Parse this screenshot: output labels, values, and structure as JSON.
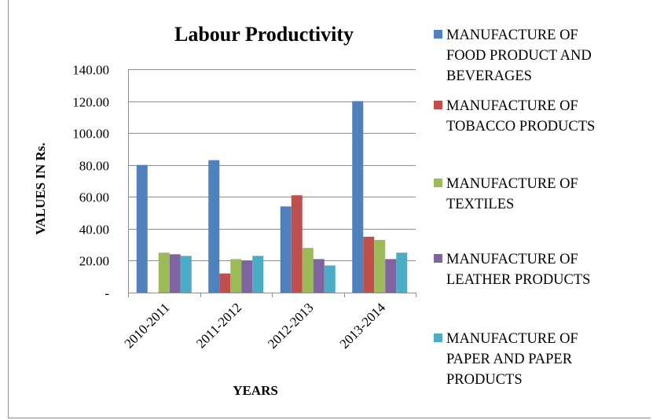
{
  "chart_data": {
    "type": "bar",
    "title": "Labour Productivity",
    "xlabel": "YEARS",
    "ylabel": "VALUES  IN Rs.",
    "categories": [
      "2010-2011",
      "2011-2012",
      "2012-2013",
      "2013-2014"
    ],
    "ylim": [
      0,
      140
    ],
    "yticks": [
      0,
      20,
      40,
      60,
      80,
      100,
      120,
      140
    ],
    "ytick_labels": [
      "-",
      "20.00",
      "40.00",
      "60.00",
      "80.00",
      "100.00",
      "120.00",
      "140.00"
    ],
    "grid": true,
    "legend_position": "right",
    "series": [
      {
        "name": "MANUFACTURE OF FOOD PRODUCT AND BEVERAGES",
        "legend_lines": [
          "MANUFACTURE OF",
          "FOOD PRODUCT AND",
          "BEVERAGES"
        ],
        "color": "#4f81bd",
        "values": [
          80,
          83,
          54,
          120
        ]
      },
      {
        "name": "MANUFACTURE OF TOBACCO PRODUCTS",
        "legend_lines": [
          "MANUFACTURE OF",
          "TOBACCO PRODUCTS"
        ],
        "color": "#c0504d",
        "values": [
          0,
          12,
          61,
          35
        ]
      },
      {
        "name": "MANUFACTURE OF TEXTILES",
        "legend_lines": [
          "MANUFACTURE OF",
          "TEXTILES"
        ],
        "color": "#9bbb59",
        "values": [
          25,
          21,
          28,
          33
        ]
      },
      {
        "name": "MANUFACTURE OF LEATHER PRODUCTS",
        "legend_lines": [
          "MANUFACTURE OF",
          "LEATHER PRODUCTS"
        ],
        "color": "#8064a2",
        "values": [
          24,
          20,
          21,
          21
        ]
      },
      {
        "name": "MANUFACTURE OF PAPER AND PAPER PRODUCTS",
        "legend_lines": [
          " MANUFACTURE OF",
          "PAPER AND PAPER",
          "PRODUCTS"
        ],
        "color": "#4bacc6",
        "values": [
          23,
          23,
          17,
          25
        ]
      }
    ]
  }
}
